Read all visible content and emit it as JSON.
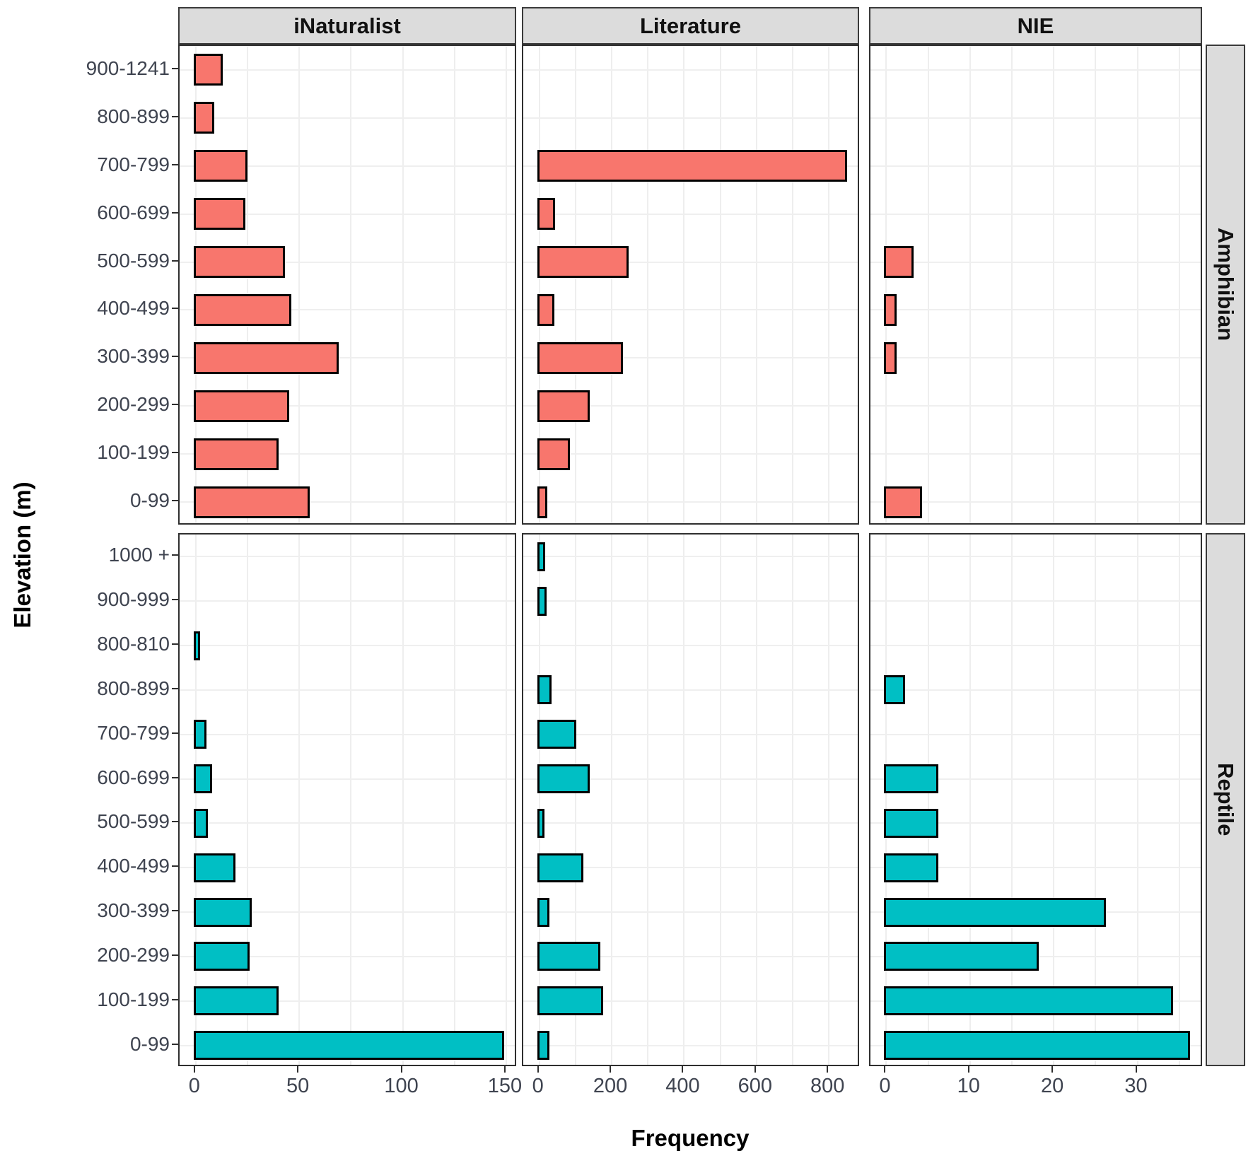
{
  "figure": {
    "x_title": "Frequency",
    "y_title": "Elevation (m)"
  },
  "strips": {
    "columns": [
      "iNaturalist",
      "Literature",
      "NIE"
    ],
    "rows": [
      "Amphibian",
      "Reptile"
    ]
  },
  "colors": {
    "amphibian_fill": "#F8766D",
    "reptile_fill": "#00BFC4",
    "bar_stroke": "#000000",
    "strip_bg": "#DCDCDC",
    "strip_border": "#3a3a3a",
    "panel_border": "#2f2f2f",
    "gridline": "#eeeeee",
    "axis_text": "#3f4450"
  },
  "chart_data": [
    {
      "type": "bar",
      "orientation": "horizontal",
      "facet_col": "iNaturalist",
      "facet_row": "Amphibian",
      "fill": "#F8766D",
      "categories": [
        "900-1241",
        "800-899",
        "700-799",
        "600-699",
        "500-599",
        "400-499",
        "300-399",
        "200-299",
        "100-199",
        "0-99"
      ],
      "values": [
        12,
        8,
        24,
        23,
        42,
        45,
        68,
        44,
        39,
        54
      ],
      "xticks": [
        0,
        50,
        100,
        150
      ],
      "grid_step": 25,
      "xlim": [
        -7.8,
        155.5
      ]
    },
    {
      "type": "bar",
      "orientation": "horizontal",
      "facet_col": "Literature",
      "facet_row": "Amphibian",
      "fill": "#F8766D",
      "categories": [
        "900-1241",
        "800-899",
        "700-799",
        "600-699",
        "500-599",
        "400-499",
        "300-399",
        "200-299",
        "100-199",
        "0-99"
      ],
      "values": [
        0,
        0,
        845,
        38,
        240,
        36,
        225,
        134,
        78,
        17
      ],
      "xticks": [
        0,
        200,
        400,
        600,
        800
      ],
      "grid_step": 100,
      "xlim": [
        -44.4,
        887.5
      ]
    },
    {
      "type": "bar",
      "orientation": "horizontal",
      "facet_col": "NIE",
      "facet_row": "Amphibian",
      "fill": "#F8766D",
      "categories": [
        "900-1241",
        "800-899",
        "700-799",
        "600-699",
        "500-599",
        "400-499",
        "300-399",
        "200-299",
        "100-199",
        "0-99"
      ],
      "values": [
        0,
        0,
        0,
        0,
        3,
        1,
        1,
        0,
        0,
        4
      ],
      "xticks": [
        0,
        10,
        20,
        30
      ],
      "grid_step": 5,
      "xlim": [
        -1.9,
        37.9
      ]
    },
    {
      "type": "bar",
      "orientation": "horizontal",
      "facet_col": "iNaturalist",
      "facet_row": "Reptile",
      "fill": "#00BFC4",
      "categories": [
        "1000 +",
        "900-999",
        "800-810",
        "800-899",
        "700-799",
        "600-699",
        "500-599",
        "400-499",
        "300-399",
        "200-299",
        "100-199",
        "0-99"
      ],
      "values": [
        0,
        0,
        1,
        0,
        4,
        7,
        5,
        18,
        26,
        25,
        39,
        148
      ],
      "xticks": [
        0,
        50,
        100,
        150
      ],
      "grid_step": 25,
      "xlim": [
        -7.8,
        155.5
      ]
    },
    {
      "type": "bar",
      "orientation": "horizontal",
      "facet_col": "Literature",
      "facet_row": "Reptile",
      "fill": "#00BFC4",
      "categories": [
        "1000 +",
        "900-999",
        "800-810",
        "800-899",
        "700-799",
        "600-699",
        "500-599",
        "400-499",
        "300-399",
        "200-299",
        "100-199",
        "0-99"
      ],
      "values": [
        10,
        14,
        0,
        28,
        96,
        134,
        8,
        115,
        22,
        162,
        171,
        22
      ],
      "xticks": [
        0,
        200,
        400,
        600,
        800
      ],
      "grid_step": 100,
      "xlim": [
        -44.4,
        887.5
      ]
    },
    {
      "type": "bar",
      "orientation": "horizontal",
      "facet_col": "NIE",
      "facet_row": "Reptile",
      "fill": "#00BFC4",
      "categories": [
        "1000 +",
        "900-999",
        "800-810",
        "800-899",
        "700-799",
        "600-699",
        "500-599",
        "400-499",
        "300-399",
        "200-299",
        "100-199",
        "0-99"
      ],
      "values": [
        0,
        0,
        0,
        2,
        0,
        6,
        6,
        6,
        26,
        18,
        34,
        36
      ],
      "xticks": [
        0,
        10,
        20,
        30
      ],
      "grid_step": 5,
      "xlim": [
        -1.9,
        37.9
      ]
    }
  ]
}
